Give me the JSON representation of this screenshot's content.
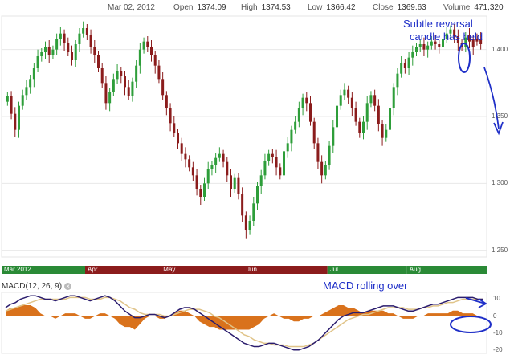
{
  "header": {
    "date": "Mar 02, 2012",
    "open_label": "Open",
    "open": "1374.09",
    "high_label": "High",
    "high": "1374.53",
    "low_label": "Low",
    "low": "1366.42",
    "close_label": "Close",
    "close": "1369.63",
    "volume_label": "Volume",
    "volume": "471,320"
  },
  "macd_label": "MACD(12, 26, 9)",
  "annotations": {
    "reversal": "Subtle reversal candle has held",
    "reversal_line1": "Subtle reversal",
    "reversal_line2": "candle has held",
    "macd": "MACD rolling over"
  },
  "colors": {
    "up": "#2e9e3a",
    "down": "#8b1c1c",
    "macd": "#2b1d6e",
    "signal": "#e0c489",
    "hist": "#d9721c",
    "annotation": "#1f2fc8",
    "bar_up": "#2a8a36",
    "bar_down": "#8b1c1c"
  },
  "chart_data": [
    {
      "type": "candlestick",
      "y_ticks": [
        "1,400",
        "1,350",
        "1,300",
        "1,250"
      ],
      "ylim": [
        1245,
        1425
      ],
      "x_labels": [
        "Mar 2012",
        "Apr",
        "May",
        "Jun",
        "Jul",
        "Aug"
      ],
      "x_label_index": [
        0,
        21,
        41,
        63,
        85,
        106
      ],
      "candles_close": [
        1365,
        1352,
        1340,
        1358,
        1366,
        1372,
        1378,
        1386,
        1395,
        1398,
        1402,
        1396,
        1400,
        1408,
        1412,
        1405,
        1398,
        1392,
        1404,
        1412,
        1416,
        1411,
        1402,
        1396,
        1386,
        1375,
        1360,
        1368,
        1378,
        1384,
        1380,
        1372,
        1365,
        1376,
        1388,
        1400,
        1406,
        1402,
        1396,
        1388,
        1378,
        1366,
        1356,
        1345,
        1338,
        1330,
        1322,
        1318,
        1312,
        1306,
        1296,
        1290,
        1300,
        1311,
        1314,
        1319,
        1322,
        1316,
        1306,
        1296,
        1304,
        1292,
        1276,
        1265,
        1272,
        1285,
        1298,
        1306,
        1317,
        1322,
        1320,
        1312,
        1306,
        1324,
        1330,
        1340,
        1346,
        1356,
        1364,
        1360,
        1346,
        1330,
        1316,
        1306,
        1314,
        1328,
        1342,
        1358,
        1366,
        1370,
        1364,
        1356,
        1346,
        1338,
        1346,
        1360,
        1366,
        1358,
        1344,
        1334,
        1340,
        1356,
        1372,
        1382,
        1390,
        1386,
        1394,
        1398,
        1402,
        1404,
        1400,
        1403,
        1406,
        1404,
        1402,
        1408,
        1412,
        1415,
        1410,
        1405,
        1402,
        1409,
        1406,
        1402,
        1406,
        1404
      ],
      "last_down_candles": 4
    },
    {
      "type": "line",
      "title": "MACD(12, 26, 9)",
      "y_ticks": [
        "10",
        "0",
        "-10",
        "-20"
      ],
      "ylim": [
        -22,
        14
      ],
      "series": [
        {
          "name": "MACD",
          "values": [
            5,
            7,
            8,
            10,
            11,
            12,
            12,
            11,
            10,
            10,
            9,
            10,
            11,
            12,
            12,
            11,
            10,
            9,
            10,
            11,
            12,
            11,
            9,
            6,
            3,
            1,
            -1,
            -1,
            0,
            1,
            1,
            0,
            -1,
            0,
            2,
            4,
            5,
            5,
            4,
            2,
            0,
            -2,
            -4,
            -6,
            -8,
            -10,
            -12,
            -14,
            -16,
            -17,
            -18,
            -18,
            -17,
            -16,
            -16,
            -17,
            -18,
            -19,
            -20,
            -20,
            -19,
            -18,
            -16,
            -14,
            -11,
            -8,
            -5,
            -2,
            0,
            1,
            2,
            2,
            2,
            3,
            4,
            5,
            6,
            6,
            6,
            5,
            4,
            3,
            3,
            4,
            5,
            6,
            7,
            7,
            8,
            9,
            10,
            11,
            11,
            11,
            11,
            10,
            10
          ]
        },
        {
          "name": "Signal",
          "values": [
            3,
            4,
            5,
            6,
            7,
            8,
            9,
            10,
            10,
            10,
            10,
            10,
            10,
            11,
            11,
            11,
            11,
            10,
            10,
            10,
            11,
            11,
            10,
            9,
            7,
            5,
            4,
            2,
            1,
            1,
            1,
            1,
            0,
            0,
            1,
            2,
            3,
            4,
            4,
            4,
            3,
            2,
            0,
            -1,
            -3,
            -5,
            -7,
            -9,
            -11,
            -12,
            -14,
            -15,
            -16,
            -16,
            -17,
            -17,
            -17,
            -18,
            -18,
            -18,
            -18,
            -17,
            -16,
            -14,
            -12,
            -10,
            -8,
            -6,
            -4,
            -2,
            -1,
            0,
            1,
            1,
            2,
            3,
            4,
            5,
            5,
            5,
            5,
            4,
            4,
            4,
            5,
            5,
            6,
            6,
            7,
            8,
            8,
            9,
            10,
            10,
            10,
            10,
            10
          ]
        }
      ]
    }
  ]
}
